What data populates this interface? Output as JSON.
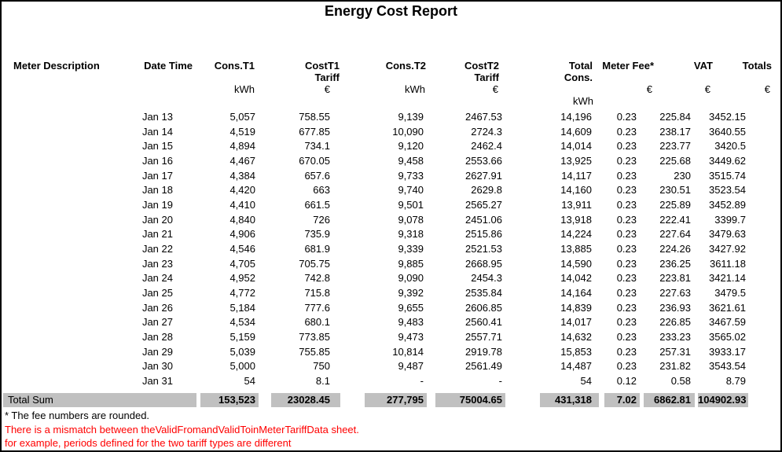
{
  "title": "Energy Cost Report",
  "colors": {
    "total_row_bg": "#c0c0c0",
    "warning_text": "#ff0000",
    "page_border": "#000000"
  },
  "table": {
    "columns": [
      {
        "label": "Meter Description",
        "sub": "",
        "unit": "",
        "unit2": ""
      },
      {
        "label": "Date Time",
        "sub": "",
        "unit": "",
        "unit2": ""
      },
      {
        "label": "Cons.T1",
        "sub": "",
        "unit": "kWh",
        "unit2": ""
      },
      {
        "label": "CostT1",
        "sub": "Tariff",
        "unit": "€",
        "unit2": ""
      },
      {
        "label": "Cons.T2",
        "sub": "",
        "unit": "kWh",
        "unit2": ""
      },
      {
        "label": "CostT2",
        "sub": "Tariff",
        "unit": "€",
        "unit2": ""
      },
      {
        "label": "Total",
        "sub": "Cons.",
        "unit": "",
        "unit2": "kWh"
      },
      {
        "label": "Meter Fee*",
        "sub": "",
        "unit": "€",
        "unit2": ""
      },
      {
        "label": "VAT",
        "sub": "",
        "unit": "€",
        "unit2": ""
      },
      {
        "label": "Totals",
        "sub": "",
        "unit": "€",
        "unit2": ""
      }
    ],
    "rows": [
      [
        "",
        "Jan 13",
        "5,057",
        "758.55",
        "9,139",
        "2467.53",
        "14,196",
        "0.23",
        "225.84",
        "3452.15"
      ],
      [
        "",
        "Jan 14",
        "4,519",
        "677.85",
        "10,090",
        "2724.3",
        "14,609",
        "0.23",
        "238.17",
        "3640.55"
      ],
      [
        "",
        "Jan 15",
        "4,894",
        "734.1",
        "9,120",
        "2462.4",
        "14,014",
        "0.23",
        "223.77",
        "3420.5"
      ],
      [
        "",
        "Jan 16",
        "4,467",
        "670.05",
        "9,458",
        "2553.66",
        "13,925",
        "0.23",
        "225.68",
        "3449.62"
      ],
      [
        "",
        "Jan 17",
        "4,384",
        "657.6",
        "9,733",
        "2627.91",
        "14,117",
        "0.23",
        "230",
        "3515.74"
      ],
      [
        "",
        "Jan 18",
        "4,420",
        "663",
        "9,740",
        "2629.8",
        "14,160",
        "0.23",
        "230.51",
        "3523.54"
      ],
      [
        "",
        "Jan 19",
        "4,410",
        "661.5",
        "9,501",
        "2565.27",
        "13,911",
        "0.23",
        "225.89",
        "3452.89"
      ],
      [
        "",
        "Jan 20",
        "4,840",
        "726",
        "9,078",
        "2451.06",
        "13,918",
        "0.23",
        "222.41",
        "3399.7"
      ],
      [
        "",
        "Jan 21",
        "4,906",
        "735.9",
        "9,318",
        "2515.86",
        "14,224",
        "0.23",
        "227.64",
        "3479.63"
      ],
      [
        "",
        "Jan 22",
        "4,546",
        "681.9",
        "9,339",
        "2521.53",
        "13,885",
        "0.23",
        "224.26",
        "3427.92"
      ],
      [
        "",
        "Jan 23",
        "4,705",
        "705.75",
        "9,885",
        "2668.95",
        "14,590",
        "0.23",
        "236.25",
        "3611.18"
      ],
      [
        "",
        "Jan 24",
        "4,952",
        "742.8",
        "9,090",
        "2454.3",
        "14,042",
        "0.23",
        "223.81",
        "3421.14"
      ],
      [
        "",
        "Jan 25",
        "4,772",
        "715.8",
        "9,392",
        "2535.84",
        "14,164",
        "0.23",
        "227.63",
        "3479.5"
      ],
      [
        "",
        "Jan 26",
        "5,184",
        "777.6",
        "9,655",
        "2606.85",
        "14,839",
        "0.23",
        "236.93",
        "3621.61"
      ],
      [
        "",
        "Jan 27",
        "4,534",
        "680.1",
        "9,483",
        "2560.41",
        "14,017",
        "0.23",
        "226.85",
        "3467.59"
      ],
      [
        "",
        "Jan 28",
        "5,159",
        "773.85",
        "9,473",
        "2557.71",
        "14,632",
        "0.23",
        "233.23",
        "3565.02"
      ],
      [
        "",
        "Jan 29",
        "5,039",
        "755.85",
        "10,814",
        "2919.78",
        "15,853",
        "0.23",
        "257.31",
        "3933.17"
      ],
      [
        "",
        "Jan 30",
        "5,000",
        "750",
        "9,487",
        "2561.49",
        "14,487",
        "0.23",
        "231.82",
        "3543.54"
      ],
      [
        "",
        "Jan 31",
        "54",
        "8.1",
        "-",
        "-",
        "54",
        "0.12",
        "0.58",
        "8.79"
      ]
    ],
    "total_row": {
      "label": "Total Sum",
      "values": [
        "153,523",
        "23028.45",
        "277,795",
        "75004.65",
        "431,318",
        "7.02",
        "6862.81",
        "104902.93"
      ]
    }
  },
  "footnotes": {
    "note1": "* The fee numbers are rounded.",
    "warning1": "There is a mismatch between theValidFromandValidToinMeterTariffData sheet.",
    "warning2": "for example, periods defined for the two tariff types are different"
  }
}
